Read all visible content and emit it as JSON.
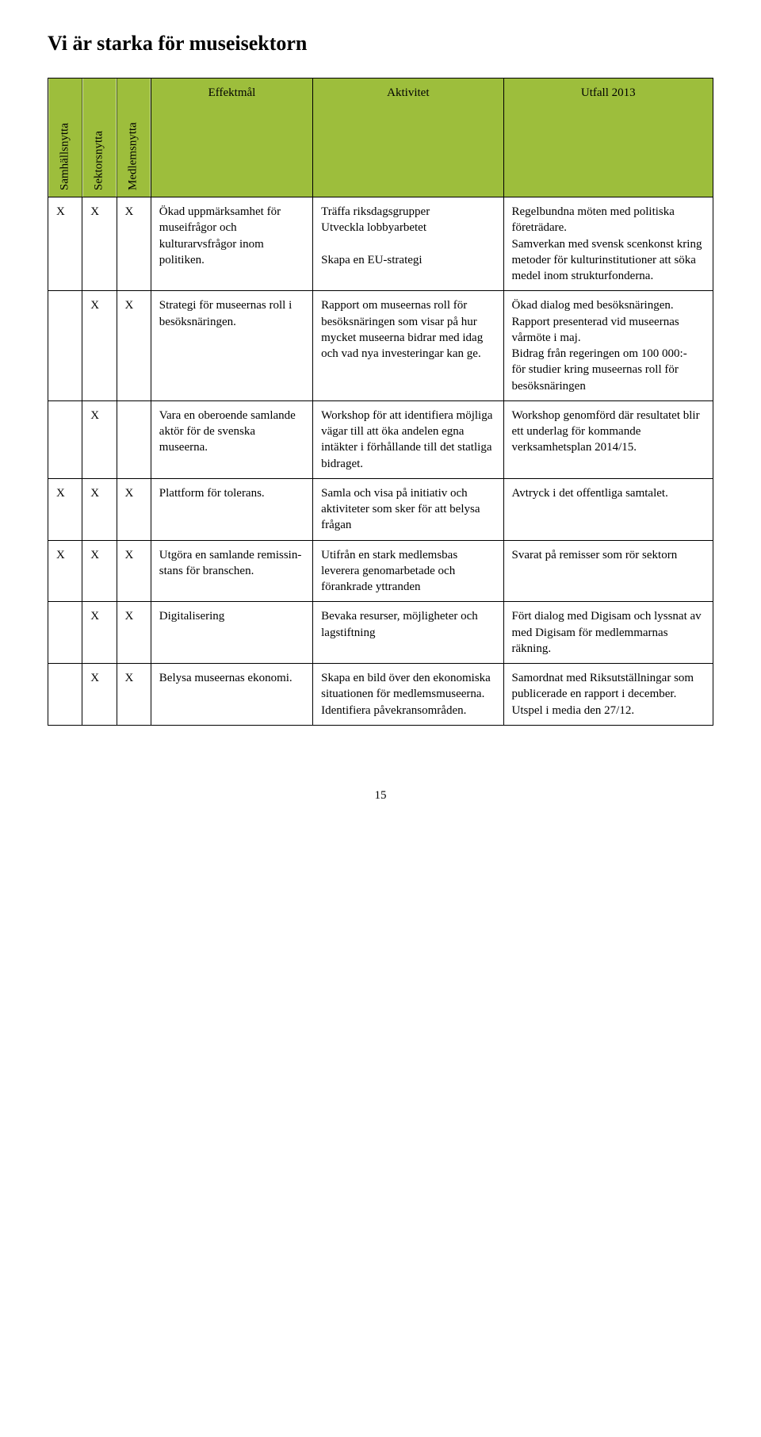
{
  "title": "Vi är starka för museisektorn",
  "headers": {
    "col1": "Samhällsnytta",
    "col2": "Sektorsnytta",
    "col3": "Medlemsnytta",
    "effekt": "Effektmål",
    "aktivitet": "Aktivitet",
    "utfall": "Utfall 2013"
  },
  "rows": [
    {
      "c1": "X",
      "c2": "X",
      "c3": "X",
      "effekt": "Ökad upp­märksamhet för museifrågor och kulturarvsfrågor inom politiken.",
      "aktivitet": "Träffa riksdagsgrup­per\nUtveckla lobby­arbetet\n\nSkapa en EU-strategi",
      "utfall": "Regelbundna möten med politiska företrädare.\nSamverkan med svensk scenkonst kring metoder för kulturinsti­tutioner att söka medel inom strukturfonderna."
    },
    {
      "c1": "",
      "c2": "X",
      "c3": "X",
      "effekt": "Strategi för museernas roll i besöksnäringen.",
      "aktivitet": "Rapport om mu­seernas roll för besöksnäringen som visar på hur mycket museerna bidrar med idag och vad nya investeringar kan ge.",
      "utfall": "Ökad dialog med besök­snäringen.\nRapport presenterad vid museernas vårmöte i maj.\nBidrag från regeringen om 100 000:-\nför studier kring mu­seernas roll för besök­snäringen"
    },
    {
      "c1": "",
      "c2": "X",
      "c3": "",
      "effekt": "Vara en oberoende samlande aktör för de svenska museerna.",
      "aktivitet": "Workshop för att identifiera möjliga vägar till att öka an­delen egna intäkter i förhållande till det statliga bidraget.",
      "utfall": "Workshop genomförd där resultatet blir ett underlag för kom­mande verksamhetsplan 2014/15."
    },
    {
      "c1": "X",
      "c2": "X",
      "c3": "X",
      "effekt": "Plattform för tolerans.",
      "aktivitet": "Samla och visa på initiativ och aktiv­iteter som sker för att belysa frågan",
      "utfall": "Avtryck i det offentliga samtalet."
    },
    {
      "c1": "X",
      "c2": "X",
      "c3": "X",
      "effekt": "Utgöra en sam­lande remissin­stans för bran­schen.",
      "aktivitet": "Utifrån en stark medlemsbas leverera genomarbetade och förankrade yttranden",
      "utfall": "Svarat på remisser som rör sektorn"
    },
    {
      "c1": "",
      "c2": "X",
      "c3": "X",
      "effekt": "Digitalisering",
      "aktivitet": "Bevaka resurser, möjligheter och lag­stiftning",
      "utfall": "Fört dialog med Digisam och lyssnat av med Digisam för medlemmarnas räkning."
    },
    {
      "c1": "",
      "c2": "X",
      "c3": "X",
      "effekt": "Belysa museernas ekonomi.",
      "aktivitet": "Skapa en bild över den ekonomiska situ­ationen för medlems­museerna. Identifiera påvekransområden.",
      "utfall": "Samordnat med Riksutställningar som publicerade en rapport i december.\nUtspel i media den 27/12."
    }
  ],
  "page_number": "15",
  "colors": {
    "header_bg": "#9dbe3c",
    "border": "#000000",
    "text": "#000000",
    "background": "#ffffff"
  }
}
